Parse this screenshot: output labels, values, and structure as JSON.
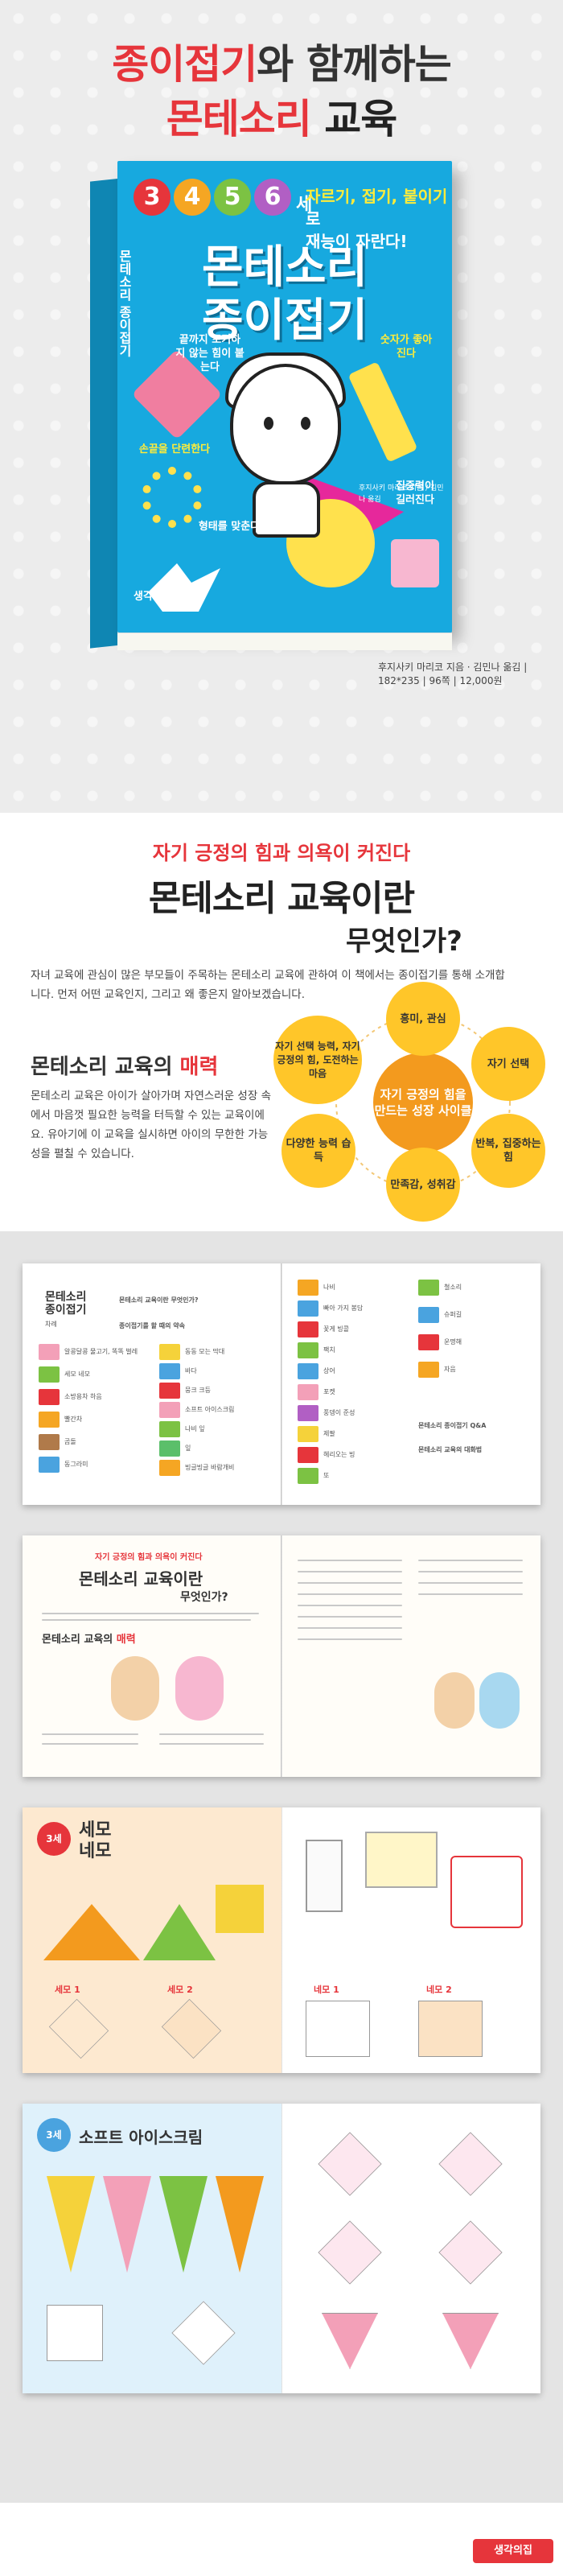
{
  "hero": {
    "title_part1_highlight": "종이접기",
    "title_part1_rest": "와 함께하는",
    "title_part2_highlight": "몬테소리",
    "title_part2_rest": " 교육"
  },
  "book": {
    "ages": [
      "3",
      "4",
      "5",
      "6"
    ],
    "age_unit": "세",
    "tagline_highlight": "자르기, 접기, 붙이기",
    "tagline_rest": "로",
    "tagline_line2": "재능이 자란다!",
    "title_line1": "몬테소리",
    "title_line2": "종이접기",
    "spine_text": "몬테소리 종이접기",
    "notes": [
      "끝까지 포기하지 않는 힘이 붙는다",
      "숫자가 좋아진다",
      "손끝을 단련한다",
      "형태를 맞춘다",
      "집중력이 길러진다"
    ],
    "credits": "후지사키 마리코 지음 / 김민나 옮김",
    "publisher_logo": "생각의집",
    "spec": "후지사키 마리코 지음 · 김민나 옮김 | 182*235 | 96쪽 | 12,000원"
  },
  "intro": {
    "sub_heading": "자기 긍정의 힘과 의욕이 커진다",
    "heading_line1": "몬테소리 교육이란",
    "heading_line2": "무엇인가?",
    "paragraph": "자녀 교육에 관심이 많은 부모들이 주목하는 몬테소리 교육에 관하여 이 책에서는 종이접기를 통해 소개합니다. 먼저 어떤 교육인지, 그리고 왜 좋은지 알아보겠습니다."
  },
  "charm": {
    "heading_prefix": "몬테소리 교육의 ",
    "heading_highlight": "매력",
    "paragraph": "몬테소리 교육은 아이가 살아가며 자연스러운 성장 속에서 마음껏 필요한 능력을 터득할 수 있는 교육이에요. 유아기에 이 교육을 실시하면 아이의 무한한 가능성을 펼칠 수 있습니다."
  },
  "cycle": {
    "center": "자기 긍정의 힘을 만드는 성장 사이클",
    "nodes": [
      "흥미, 관심",
      "자기 선택",
      "반복, 집중하는 힘",
      "만족감, 성취감",
      "다양한 능력 습득",
      "자기 선택 능력, 자기 긍정의 힘, 도전하는 마음"
    ]
  },
  "spreads": {
    "toc_title_line1": "몬테소리",
    "toc_title_line2": "종이접기",
    "toc_sub": "차례",
    "toc_heading": "몬테소리 교육이란 무엇인가?",
    "toc_heading_2": "종이접기를 할 때의 약속",
    "toc_items_left": [
      "알콩달콩 물고기, 똑똑 벌레",
      "세모 네모",
      "소방용차 하음",
      "빨간차",
      "곰돌",
      "동그라미"
    ],
    "toc_items_mid": [
      "동동 모는 막대",
      "바다",
      "뭉크 크등",
      "소프트 아이스크림",
      "나비 잎",
      "잎",
      "빙글빙글 바람개비"
    ],
    "toc_items_right": [
      "나비",
      "빠아 가지 봉담",
      "꽃게 빙콜",
      "팩치",
      "상어",
      "포켓",
      "풍뎅이 준성",
      "제팔",
      "헤리오는 빙",
      "또"
    ],
    "toc_items_right2": [
      "철소리",
      "슈퍼길",
      "운명해",
      "자음"
    ],
    "qa_title": "몬테소리 종이접기 Q&A",
    "dialogue_title": "몬테소리 교육의 대화법",
    "spread2_sub": "자기 긍정의 힘과 의욕이 커진다",
    "spread2_title_line1": "몬테소리 교육이란",
    "spread2_title_line2": "무엇인가?",
    "spread2_charm_prefix": "몬테소리 교육의 ",
    "spread2_charm_highlight": "매력",
    "spread3_title_line1": "세모",
    "spread3_title_line2": "네모",
    "spread3_badge": "3세",
    "spread3_steps": [
      "세모 1",
      "세모 2",
      "네모 1",
      "네모 2"
    ],
    "spread4_title": "소프트 아이스크림",
    "spread4_badge": "3세"
  },
  "footer": {
    "logo": "생각의집"
  },
  "colors": {
    "accent_red": "#e6353b",
    "book_blue": "#17a9df",
    "cycle_yellow": "#ffc629",
    "cycle_orange": "#f39a1e"
  }
}
